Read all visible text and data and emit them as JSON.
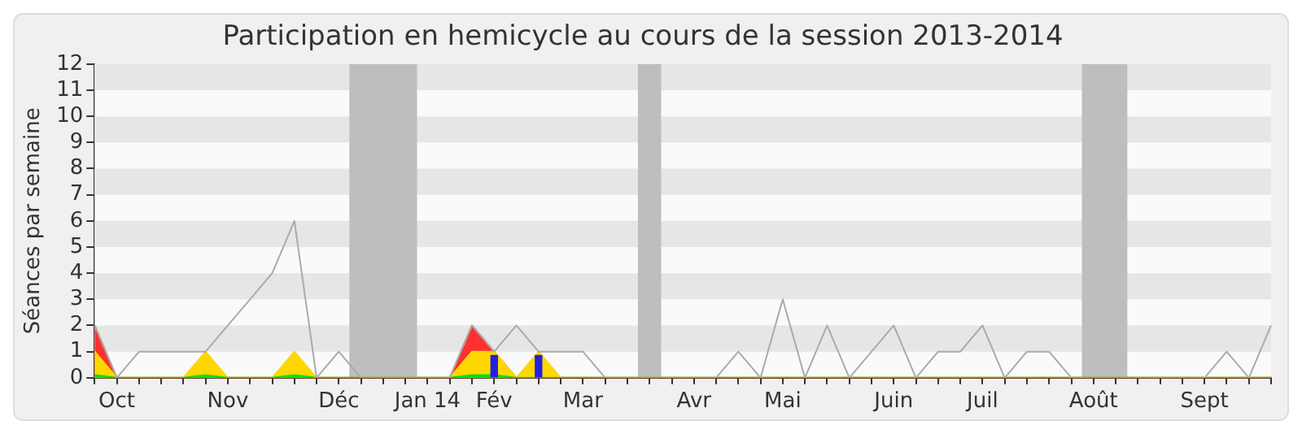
{
  "chart_data": {
    "type": "area",
    "title": "Participation en hemicycle au cours de la session 2013-2014",
    "ylabel": "Séances par semaine",
    "categories": [
      null,
      "Oct",
      null,
      null,
      null,
      null,
      "Nov",
      null,
      null,
      null,
      null,
      "Déc",
      null,
      null,
      null,
      "Jan 14",
      null,
      null,
      "Fév",
      null,
      null,
      null,
      "Mar",
      null,
      null,
      null,
      null,
      "Avr",
      null,
      null,
      null,
      "Mai",
      null,
      null,
      null,
      null,
      "Juin",
      null,
      null,
      null,
      "Juil",
      null,
      null,
      null,
      null,
      "Août",
      null,
      null,
      null,
      null,
      "Sept",
      null,
      null,
      null
    ],
    "ylim": [
      0,
      12
    ],
    "yticks": [
      0,
      1,
      2,
      3,
      4,
      5,
      6,
      7,
      8,
      9,
      10,
      11,
      12
    ],
    "series": [
      {
        "type": "bar",
        "color": "#bebebe",
        "values": [
          null,
          null,
          null,
          null,
          null,
          null,
          null,
          null,
          null,
          null,
          null,
          null,
          12,
          12,
          12,
          null,
          null,
          null,
          null,
          null,
          null,
          null,
          null,
          null,
          null,
          12,
          null,
          null,
          null,
          null,
          null,
          null,
          null,
          null,
          null,
          null,
          null,
          null,
          null,
          null,
          null,
          null,
          null,
          null,
          null,
          12,
          12,
          null,
          null,
          null,
          null,
          null,
          null,
          null
        ]
      },
      {
        "type": "line",
        "color": "#aaaaaa",
        "values": [
          2,
          0,
          1,
          1,
          1,
          1,
          2,
          3,
          4,
          6,
          0,
          1,
          0,
          0,
          0,
          0,
          0,
          2,
          1,
          2,
          1,
          1,
          1,
          0,
          0,
          0,
          0,
          0,
          0,
          1,
          0,
          3,
          0,
          2,
          0,
          1,
          2,
          0,
          1,
          1,
          2,
          0,
          1,
          1,
          0,
          0,
          0,
          0,
          0,
          0,
          0,
          1,
          0,
          2
        ]
      },
      {
        "color": "#ff3030",
        "values": [
          2,
          0,
          0,
          0,
          0,
          0,
          0,
          0,
          0,
          0,
          0,
          0,
          0,
          0,
          0,
          0,
          0,
          2,
          1,
          0,
          0,
          0,
          0,
          0,
          0,
          0,
          0,
          0,
          0,
          0,
          0,
          0,
          0,
          0,
          0,
          0,
          0,
          0,
          0,
          0,
          0,
          0,
          0,
          0,
          0,
          0,
          0,
          0,
          0,
          0,
          0,
          0,
          0,
          0
        ]
      },
      {
        "color": "#ffd700",
        "values": [
          1,
          0,
          0,
          0,
          0,
          1,
          0,
          0,
          0,
          1,
          0,
          0,
          0,
          0,
          0,
          0,
          0,
          1,
          1,
          0,
          1,
          0,
          0,
          0,
          0,
          0,
          0,
          0,
          0,
          0,
          0,
          0,
          0,
          0,
          0,
          0,
          0,
          0,
          0,
          0,
          0,
          0,
          0,
          0,
          0,
          0,
          0,
          0,
          0,
          0,
          0,
          0,
          0,
          0
        ]
      },
      {
        "color": "#00e000",
        "values": [
          0.1,
          0,
          0,
          0,
          0,
          0.1,
          0,
          0,
          0,
          0.1,
          0,
          0,
          0,
          0,
          0,
          0,
          0,
          0.1,
          0.1,
          0,
          0,
          0,
          0,
          0,
          0,
          0,
          0,
          0,
          0,
          0,
          0,
          0,
          0,
          0,
          0,
          0,
          0,
          0,
          0,
          0,
          0,
          0,
          0,
          0,
          0,
          0,
          0,
          0,
          0,
          0,
          0,
          0,
          0,
          0
        ]
      },
      {
        "type": "bar",
        "color": "#2020e0",
        "values": [
          null,
          null,
          null,
          null,
          null,
          null,
          null,
          null,
          null,
          null,
          null,
          null,
          null,
          null,
          null,
          null,
          null,
          null,
          0.85,
          null,
          0.85,
          null,
          null,
          null,
          null,
          null,
          null,
          null,
          null,
          null,
          null,
          null,
          null,
          null,
          null,
          null,
          null,
          null,
          null,
          null,
          null,
          null,
          null,
          null,
          null,
          null,
          null,
          null,
          null,
          null,
          null,
          null,
          null,
          null
        ]
      }
    ],
    "bands": [
      {
        "axis": "y",
        "from": 1,
        "to": 2,
        "color": "#e6e6e6"
      },
      {
        "axis": "y",
        "from": 3,
        "to": 4,
        "color": "#e6e6e6"
      },
      {
        "axis": "y",
        "from": 5,
        "to": 6,
        "color": "#e6e6e6"
      },
      {
        "axis": "y",
        "from": 7,
        "to": 8,
        "color": "#e6e6e6"
      },
      {
        "axis": "y",
        "from": 9,
        "to": 10,
        "color": "#e6e6e6"
      },
      {
        "axis": "y",
        "from": 11,
        "to": 12,
        "color": "#e6e6e6"
      }
    ]
  }
}
